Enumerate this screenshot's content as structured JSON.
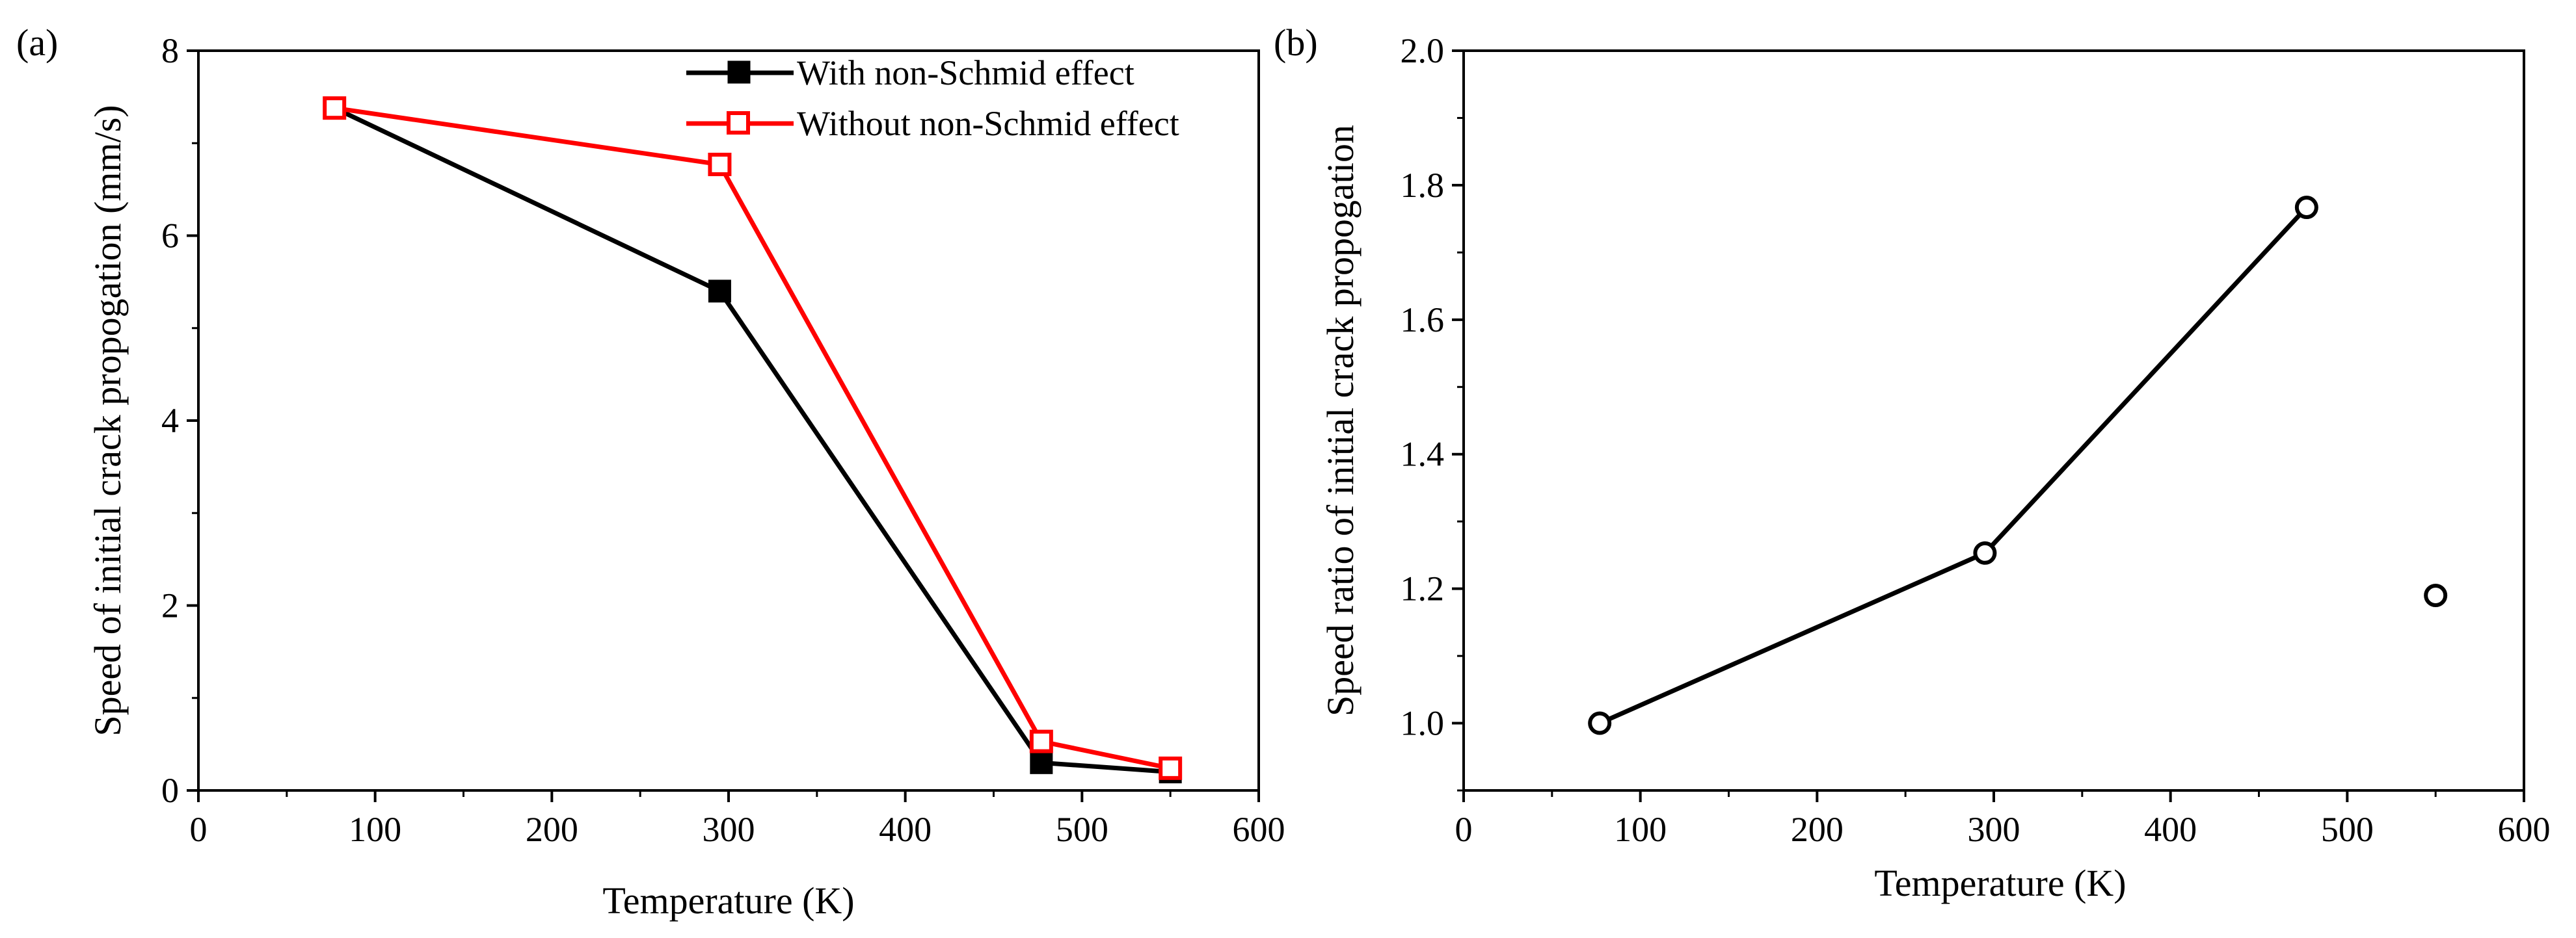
{
  "chart_data": [
    {
      "type": "line",
      "panel_label": "(a)",
      "title": "",
      "xlabel": "Temperature (K)",
      "ylabel": "Speed of initial crack propogation (mm/s)",
      "xlim": [
        0,
        600
      ],
      "ylim": [
        0,
        8
      ],
      "xticks": [
        0,
        100,
        200,
        300,
        400,
        500,
        600
      ],
      "yticks": [
        0,
        2,
        4,
        6,
        8
      ],
      "legend_position": "top-right",
      "series": [
        {
          "name": "With non-Schmid effect",
          "color": "#000000",
          "marker": "filled-square",
          "x": [
            77,
            295,
            477,
            550
          ],
          "y": [
            7.38,
            5.4,
            0.3,
            0.2
          ]
        },
        {
          "name": "Without non-Schmid effect",
          "color": "#ff0000",
          "marker": "open-square",
          "x": [
            77,
            295,
            477,
            550
          ],
          "y": [
            7.38,
            6.77,
            0.53,
            0.24
          ]
        }
      ]
    },
    {
      "type": "line",
      "panel_label": "(b)",
      "title": "",
      "xlabel": "Temperature (K)",
      "ylabel": "Speed ratio of initial crack propogation",
      "xlim": [
        0,
        600
      ],
      "ylim": [
        0.9,
        2.0
      ],
      "xticks": [
        0,
        100,
        200,
        300,
        400,
        500,
        600
      ],
      "yticks": [
        1.0,
        1.2,
        1.4,
        1.6,
        1.8,
        2.0
      ],
      "series": [
        {
          "name": "Speed ratio",
          "color": "#000000",
          "marker": "open-circle",
          "x": [
            77,
            295,
            477,
            550
          ],
          "y": [
            1.0,
            1.253,
            1.767,
            1.19
          ],
          "connected_points": 3
        }
      ]
    }
  ]
}
